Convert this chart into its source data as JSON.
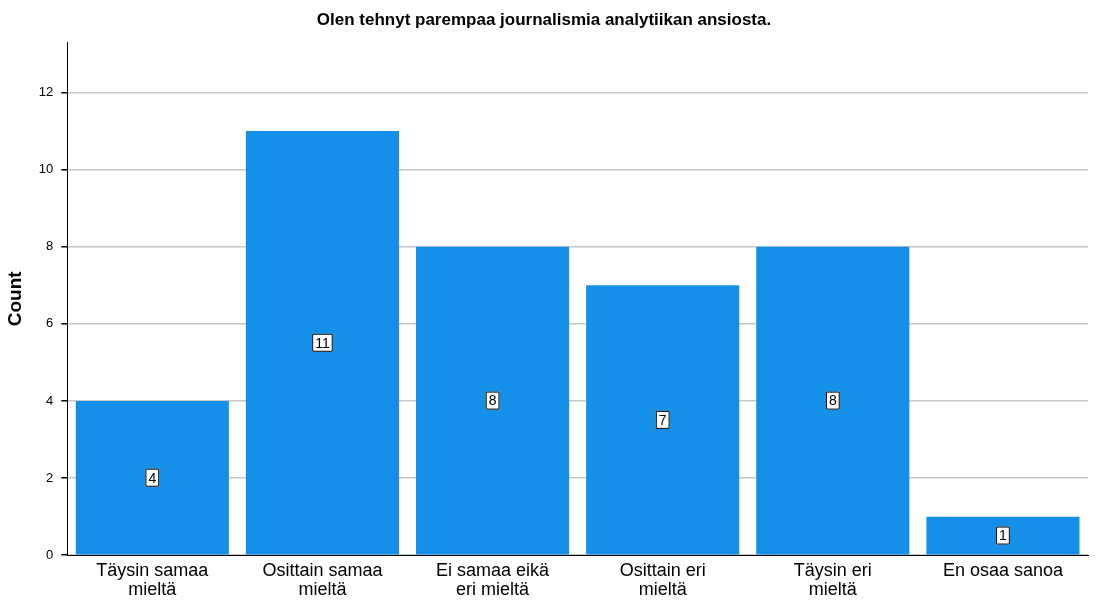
{
  "chart_data": {
    "type": "bar",
    "title": "Olen tehnyt parempaa journalismia analytiikan ansiosta.",
    "ylabel": "Count",
    "categories": [
      "Täysin samaa mieltä",
      "Osittain samaa mieltä",
      "Ei samaa eikä eri mieltä",
      "Osittain eri mieltä",
      "Täysin eri mieltä",
      "En osaa sanoa"
    ],
    "values": [
      4,
      11,
      8,
      7,
      8,
      1
    ],
    "color": "#1490e8",
    "ylim": [
      0,
      13.3
    ],
    "yticks": [
      0,
      2,
      4,
      6,
      8,
      10,
      12
    ],
    "grid": "y",
    "legend": false,
    "data_labels": true
  }
}
